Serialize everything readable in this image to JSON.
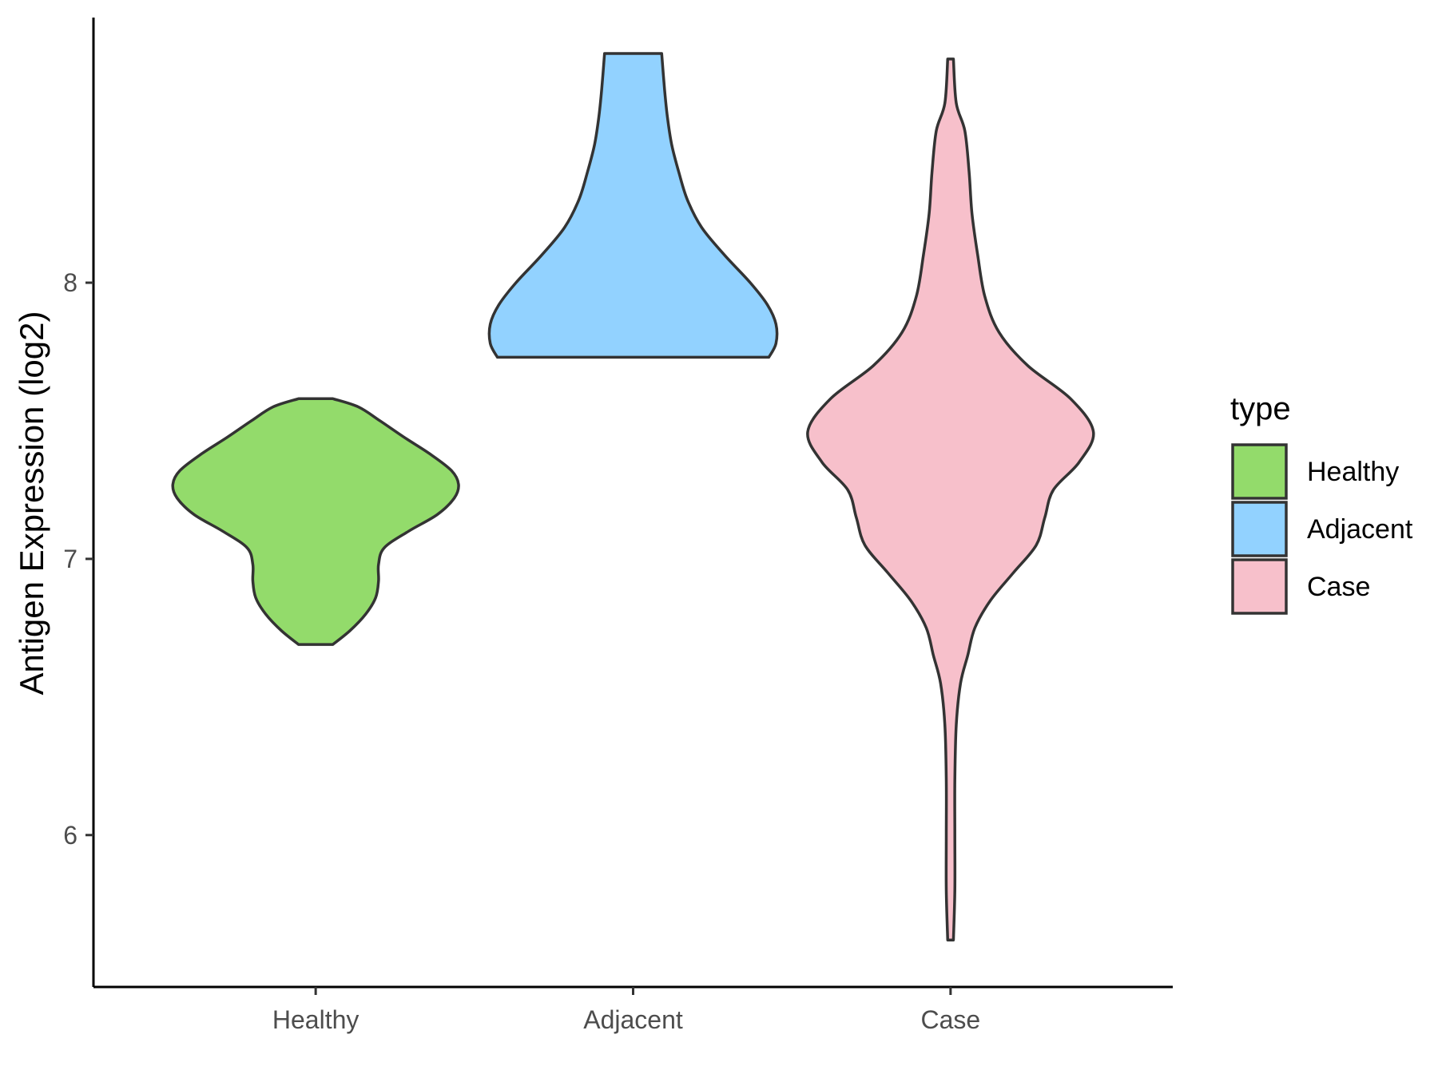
{
  "chart_data": {
    "type": "violin",
    "title": "",
    "xlabel": "",
    "ylabel": "Antigen Expression (log2)",
    "categories": [
      "Healthy",
      "Adjacent",
      "Case"
    ],
    "ylim": [
      5.45,
      8.96
    ],
    "yticks": [
      6,
      7,
      8
    ],
    "grid": false,
    "legend": {
      "title": "type",
      "position": "right",
      "entries": [
        {
          "label": "Healthy",
          "color": "#93DB6B"
        },
        {
          "label": "Adjacent",
          "color": "#92D2FF"
        },
        {
          "label": "Case",
          "color": "#F7C0CB"
        }
      ]
    },
    "series": [
      {
        "category": "Healthy",
        "color": "#93DB6B",
        "min": 6.69,
        "max": 7.58,
        "profile": [
          [
            6.69,
            0.12
          ],
          [
            6.74,
            0.24
          ],
          [
            6.8,
            0.35
          ],
          [
            6.86,
            0.42
          ],
          [
            6.92,
            0.44
          ],
          [
            6.98,
            0.44
          ],
          [
            7.04,
            0.48
          ],
          [
            7.1,
            0.65
          ],
          [
            7.16,
            0.85
          ],
          [
            7.22,
            0.97
          ],
          [
            7.27,
            1.0
          ],
          [
            7.32,
            0.95
          ],
          [
            7.38,
            0.8
          ],
          [
            7.44,
            0.62
          ],
          [
            7.5,
            0.45
          ],
          [
            7.55,
            0.3
          ],
          [
            7.58,
            0.12
          ]
        ]
      },
      {
        "category": "Adjacent",
        "color": "#92D2FF",
        "min": 7.73,
        "max": 8.83,
        "profile": [
          [
            7.73,
            0.95
          ],
          [
            7.78,
            1.0
          ],
          [
            7.85,
            1.0
          ],
          [
            7.92,
            0.94
          ],
          [
            8.0,
            0.82
          ],
          [
            8.1,
            0.64
          ],
          [
            8.2,
            0.48
          ],
          [
            8.3,
            0.38
          ],
          [
            8.4,
            0.32
          ],
          [
            8.5,
            0.27
          ],
          [
            8.6,
            0.24
          ],
          [
            8.7,
            0.22
          ],
          [
            8.83,
            0.2
          ]
        ]
      },
      {
        "category": "Case",
        "color": "#F7C0CB",
        "min": 5.62,
        "max": 8.81,
        "profile": [
          [
            5.62,
            0.02
          ],
          [
            5.8,
            0.03
          ],
          [
            6.0,
            0.03
          ],
          [
            6.2,
            0.03
          ],
          [
            6.4,
            0.04
          ],
          [
            6.55,
            0.07
          ],
          [
            6.65,
            0.12
          ],
          [
            6.75,
            0.17
          ],
          [
            6.85,
            0.28
          ],
          [
            6.95,
            0.44
          ],
          [
            7.05,
            0.6
          ],
          [
            7.15,
            0.66
          ],
          [
            7.25,
            0.72
          ],
          [
            7.35,
            0.9
          ],
          [
            7.46,
            1.0
          ],
          [
            7.58,
            0.84
          ],
          [
            7.7,
            0.54
          ],
          [
            7.82,
            0.34
          ],
          [
            7.95,
            0.24
          ],
          [
            8.1,
            0.19
          ],
          [
            8.25,
            0.15
          ],
          [
            8.4,
            0.13
          ],
          [
            8.55,
            0.1
          ],
          [
            8.65,
            0.04
          ],
          [
            8.81,
            0.02
          ]
        ]
      }
    ]
  }
}
